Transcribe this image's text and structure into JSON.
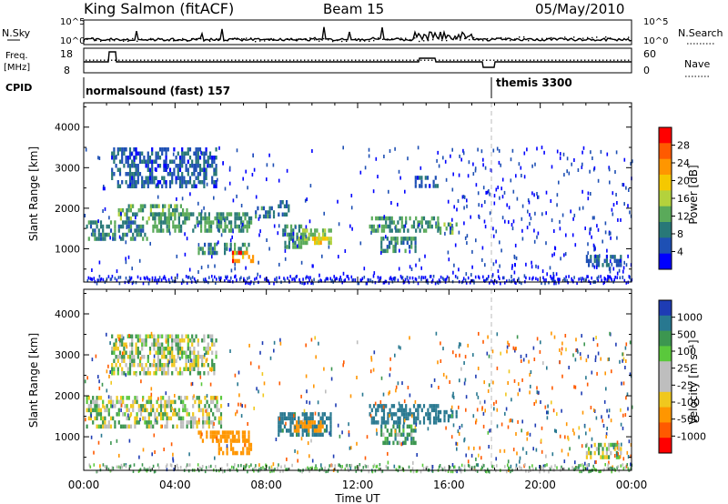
{
  "header": {
    "station": "King Salmon (fitACF)",
    "beam": "Beam 15",
    "date": "05/May/2010"
  },
  "top_labels": {
    "nsky": "N.Sky",
    "nsearch": "N.Search",
    "freq_line1": "Freq.",
    "freq_line2": "[MHz]",
    "nave": "Nave",
    "cpid": "CPID",
    "cpid_first": "normalsound (fast) 157",
    "cpid_second": "themis 3300"
  },
  "top_axes": {
    "noise_ticks_left": [
      "10^5",
      "10^0"
    ],
    "noise_ticks_right": [
      "10^5",
      "10^0"
    ],
    "freq_ticks": [
      "18",
      "8"
    ],
    "nave_ticks": [
      "60",
      "0"
    ]
  },
  "x_axis": {
    "label": "Time UT",
    "ticks": [
      "00:00",
      "04:00",
      "08:00",
      "12:00",
      "16:00",
      "20:00",
      "00:00"
    ],
    "range_hours": [
      0,
      24
    ]
  },
  "panels": [
    {
      "ylabel": "Slant Range [km]",
      "yticks": [
        "4000",
        "3000",
        "2000",
        "1000"
      ],
      "colorbar_label": "Power [dB]",
      "colorbar_ticks": [
        "28",
        "24",
        "20",
        "16",
        "12",
        "8",
        "4"
      ],
      "colorbar_colors": [
        "#ff0000",
        "#ff5a00",
        "#ff9600",
        "#f5c800",
        "#b4d23c",
        "#5aaa5a",
        "#287878",
        "#1e50b4",
        "#0000ff"
      ]
    },
    {
      "ylabel": "Slant Range [km]",
      "yticks": [
        "4000",
        "3000",
        "2000",
        "1000"
      ],
      "colorbar_label": "Velocity [m s⁻¹]",
      "colorbar_ticks": [
        "1000",
        "500",
        "100",
        "25",
        "-25",
        "-100",
        "-500",
        "-1000"
      ],
      "colorbar_colors": [
        "#1e3cb4",
        "#287890",
        "#3c9650",
        "#5ac83c",
        "#bebebe",
        "#bebebe",
        "#f0c81e",
        "#ff9600",
        "#ff5a00",
        "#ff0000"
      ]
    }
  ],
  "chart_data": [
    {
      "type": "heatmap",
      "title": "King Salmon (fitACF) Beam 15 05/May/2010",
      "xlabel": "Time UT",
      "ylabel": "Slant Range [km]",
      "xlim_hours": [
        0,
        24
      ],
      "ylim_km": [
        180,
        4600
      ],
      "value_label": "Power [dB]",
      "value_range": [
        0,
        30
      ],
      "regions": [
        {
          "t0": 0.1,
          "t1": 2.8,
          "r0": 1250,
          "r1": 1700,
          "value": 10
        },
        {
          "t0": 1.5,
          "t1": 4.5,
          "r0": 1700,
          "r1": 2100,
          "value": 14
        },
        {
          "t0": 3.0,
          "t1": 7.3,
          "r0": 1450,
          "r1": 1900,
          "value": 12
        },
        {
          "t0": 5.0,
          "t1": 7.2,
          "r0": 900,
          "r1": 1150,
          "value": 11
        },
        {
          "t0": 6.5,
          "t1": 7.4,
          "r0": 650,
          "r1": 950,
          "value": 27
        },
        {
          "t0": 7.5,
          "t1": 8.3,
          "r0": 1750,
          "r1": 2050,
          "value": 9
        },
        {
          "t0": 8.5,
          "t1": 9.0,
          "r0": 1800,
          "r1": 2200,
          "value": 8
        },
        {
          "t0": 8.7,
          "t1": 9.7,
          "r0": 1050,
          "r1": 1600,
          "value": 12
        },
        {
          "t0": 9.3,
          "t1": 10.8,
          "r0": 1100,
          "r1": 1500,
          "value": 16
        },
        {
          "t0": 10.0,
          "t1": 10.7,
          "r0": 1100,
          "r1": 1300,
          "value": 24
        },
        {
          "t0": 1.2,
          "t1": 5.8,
          "r0": 2550,
          "r1": 3500,
          "value": 7
        },
        {
          "t0": 12.5,
          "t1": 15.5,
          "r0": 1400,
          "r1": 1800,
          "value": 12
        },
        {
          "t0": 13.0,
          "t1": 14.5,
          "r0": 900,
          "r1": 1300,
          "value": 10
        },
        {
          "t0": 15.5,
          "t1": 16.3,
          "r0": 1400,
          "r1": 1650,
          "value": 14
        },
        {
          "t0": 14.5,
          "t1": 15.5,
          "r0": 2550,
          "r1": 2800,
          "value": 7
        },
        {
          "t0": 22.0,
          "t1": 23.5,
          "r0": 550,
          "r1": 850,
          "value": 7
        }
      ]
    },
    {
      "type": "heatmap",
      "xlabel": "Time UT",
      "ylabel": "Slant Range [km]",
      "xlim_hours": [
        0,
        24
      ],
      "ylim_km": [
        180,
        4600
      ],
      "value_label": "Velocity [m s⁻¹]",
      "value_range": [
        -1000,
        1000
      ],
      "regions": [
        {
          "t0": 0.1,
          "t1": 6.0,
          "r0": 1250,
          "r1": 2000,
          "value": 0
        },
        {
          "t0": 1.2,
          "t1": 5.8,
          "r0": 2550,
          "r1": 3500,
          "value": 0
        },
        {
          "t0": 5.0,
          "t1": 7.2,
          "r0": 900,
          "r1": 1150,
          "value": -200
        },
        {
          "t0": 5.8,
          "t1": 7.3,
          "r0": 600,
          "r1": 950,
          "value": -400
        },
        {
          "t0": 8.5,
          "t1": 10.8,
          "r0": 1050,
          "r1": 1600,
          "value": 150
        },
        {
          "t0": 9.2,
          "t1": 10.5,
          "r0": 1150,
          "r1": 1400,
          "value": -300
        },
        {
          "t0": 12.5,
          "t1": 15.5,
          "r0": 1400,
          "r1": 1800,
          "value": 200
        },
        {
          "t0": 13.0,
          "t1": 14.5,
          "r0": 900,
          "r1": 1300,
          "value": 60
        },
        {
          "t0": 15.5,
          "t1": 16.3,
          "r0": 1400,
          "r1": 1650,
          "value": 250
        },
        {
          "t0": 22.0,
          "t1": 23.5,
          "r0": 550,
          "r1": 850,
          "value": 0
        }
      ]
    },
    {
      "type": "line",
      "title": "CPID",
      "series": [
        {
          "name": "normalsound (fast) 157",
          "x_hours": [
            0,
            18
          ]
        },
        {
          "name": "themis 3300",
          "x_hours": [
            18,
            24
          ]
        }
      ]
    }
  ]
}
